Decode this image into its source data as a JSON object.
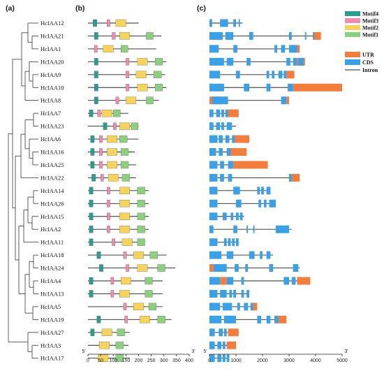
{
  "panels": {
    "a": "(a)",
    "b": "(b)",
    "c": "(c)"
  },
  "colors": {
    "Motif4": "#2a9d8f",
    "Motif3": "#f28bb0",
    "Motif2": "#f5d35c",
    "Motif1": "#8ccf7e",
    "UTR": "#f47c3c",
    "CDS": "#3aa0e8",
    "Intron": "#222222"
  },
  "legend_motifs": [
    "Motif4",
    "Motif3",
    "Motif2",
    "Motif1"
  ],
  "legend_structure": [
    "UTR",
    "CDS",
    "Intron"
  ],
  "axis_b": {
    "start": "5'",
    "end": "3'",
    "ticks": [
      "0",
      "50",
      "100",
      "150",
      "200",
      "250",
      "300",
      "350",
      "400"
    ]
  },
  "axis_c": {
    "start": "5'",
    "end": "3'",
    "ticks": [
      "0",
      "1000",
      "2000",
      "3000",
      "4000",
      "5000"
    ]
  },
  "genes": [
    {
      "name": "HcIAA12",
      "length": 200,
      "motifs": [
        [
          "Motif4",
          20,
          35
        ],
        [
          "Motif3",
          75,
          87
        ],
        [
          "Motif2",
          110,
          150
        ]
      ],
      "gene_len": 1250,
      "utr": [],
      "cds": [
        [
          0,
          100
        ],
        [
          400,
          700
        ],
        [
          900,
          1000
        ],
        [
          1100,
          1150
        ]
      ]
    },
    {
      "name": "HcIAA21",
      "length": 290,
      "motifs": [
        [
          "Motif4",
          25,
          40
        ],
        [
          "Motif3",
          95,
          108
        ],
        [
          "Motif2",
          125,
          165
        ],
        [
          "Motif1",
          230,
          258
        ]
      ],
      "gene_len": 4200,
      "utr": [
        [
          3900,
          4200
        ]
      ],
      "cds": [
        [
          0,
          500
        ],
        [
          600,
          900
        ],
        [
          1500,
          1650
        ],
        [
          3000,
          3100
        ],
        [
          3600,
          3650
        ],
        [
          3900,
          3950
        ]
      ]
    },
    {
      "name": "HcIAA1",
      "length": 270,
      "motifs": [
        [
          "Motif3",
          25,
          37
        ],
        [
          "Motif2",
          60,
          100
        ],
        [
          "Motif1",
          130,
          158
        ]
      ],
      "gene_len": 3400,
      "utr": [
        [
          3100,
          3400
        ]
      ],
      "cds": [
        [
          0,
          350
        ],
        [
          900,
          1050
        ],
        [
          2450,
          2550
        ],
        [
          2700,
          2850
        ],
        [
          3000,
          3300
        ]
      ]
    },
    {
      "name": "HcIAA20",
      "length": 310,
      "motifs": [
        [
          "Motif4",
          25,
          40
        ],
        [
          "Motif3",
          150,
          162
        ],
        [
          "Motif2",
          195,
          235
        ],
        [
          "Motif1",
          265,
          295
        ]
      ],
      "gene_len": 3600,
      "utr": [
        [
          3300,
          3600
        ]
      ],
      "cds": [
        [
          0,
          550
        ],
        [
          650,
          900
        ],
        [
          1400,
          1550
        ],
        [
          2900,
          3050
        ],
        [
          3150,
          3300
        ],
        [
          3350,
          3550
        ]
      ]
    },
    {
      "name": "HcIAA9",
      "length": 305,
      "motifs": [
        [
          "Motif4",
          25,
          40
        ],
        [
          "Motif3",
          150,
          162
        ],
        [
          "Motif2",
          190,
          230
        ],
        [
          "Motif1",
          260,
          290
        ]
      ],
      "gene_len": 3200,
      "utr": [
        [
          2900,
          3200
        ]
      ],
      "cds": [
        [
          0,
          400
        ],
        [
          1000,
          1150
        ],
        [
          2150,
          2250
        ],
        [
          2350,
          2450
        ],
        [
          2600,
          2750
        ],
        [
          2800,
          2900
        ]
      ]
    },
    {
      "name": "HcIAA10",
      "length": 310,
      "motifs": [
        [
          "Motif4",
          25,
          40
        ],
        [
          "Motif3",
          150,
          162
        ],
        [
          "Motif2",
          195,
          235
        ],
        [
          "Motif1",
          265,
          295
        ]
      ],
      "gene_len": 5000,
      "utr": [
        [
          3150,
          5000
        ]
      ],
      "cds": [
        [
          0,
          550
        ],
        [
          1300,
          1500
        ],
        [
          2150,
          2300
        ],
        [
          2950,
          3150
        ]
      ]
    },
    {
      "name": "HcIAA8",
      "length": 280,
      "motifs": [
        [
          "Motif4",
          25,
          40
        ],
        [
          "Motif3",
          110,
          122
        ],
        [
          "Motif2",
          150,
          190
        ],
        [
          "Motif1",
          230,
          258
        ]
      ],
      "gene_len": 3000,
      "utr": [
        [
          0,
          400
        ],
        [
          2900,
          3000
        ]
      ],
      "cds": [
        [
          100,
          700
        ],
        [
          2700,
          2900
        ]
      ]
    },
    {
      "name": "HcIAA7",
      "length": 160,
      "motifs": [
        [
          "Motif4",
          5,
          20
        ],
        [
          "Motif3",
          38,
          50
        ],
        [
          "Motif2",
          55,
          95
        ],
        [
          "Motif1",
          100,
          128
        ]
      ],
      "gene_len": 1100,
      "utr": [
        [
          700,
          1100
        ]
      ],
      "cds": [
        [
          0,
          150
        ],
        [
          250,
          400
        ],
        [
          450,
          550
        ],
        [
          600,
          700
        ]
      ]
    },
    {
      "name": "HcIAA23",
      "length": 200,
      "motifs": [
        [
          "Motif4",
          60,
          75
        ],
        [
          "Motif3",
          100,
          112
        ],
        [
          "Motif2",
          125,
          165
        ],
        [
          "Motif1",
          170,
          198
        ]
      ],
      "gene_len": 1000,
      "utr": [],
      "cds": [
        [
          0,
          150
        ],
        [
          250,
          400
        ],
        [
          450,
          550
        ],
        [
          650,
          850
        ]
      ]
    },
    {
      "name": "HcIAA6",
      "length": 200,
      "motifs": [
        [
          "Motif4",
          10,
          25
        ],
        [
          "Motif3",
          45,
          57
        ],
        [
          "Motif2",
          75,
          115
        ],
        [
          "Motif1",
          125,
          155
        ]
      ],
      "gene_len": 1500,
      "utr": [
        [
          900,
          1500
        ]
      ],
      "cds": [
        [
          0,
          300
        ],
        [
          350,
          500
        ],
        [
          600,
          750
        ],
        [
          850,
          950
        ]
      ]
    },
    {
      "name": "HcIAA16",
      "length": 185,
      "motifs": [
        [
          "Motif4",
          10,
          25
        ],
        [
          "Motif3",
          45,
          57
        ],
        [
          "Motif2",
          75,
          115
        ],
        [
          "Motif1",
          130,
          160
        ]
      ],
      "gene_len": 1400,
      "utr": [
        [
          750,
          1400
        ]
      ],
      "cds": [
        [
          0,
          250
        ],
        [
          350,
          500
        ],
        [
          650,
          800
        ]
      ]
    },
    {
      "name": "HcIAA25",
      "length": 190,
      "motifs": [
        [
          "Motif4",
          10,
          25
        ],
        [
          "Motif3",
          45,
          57
        ],
        [
          "Motif2",
          75,
          115
        ],
        [
          "Motif1",
          130,
          160
        ]
      ],
      "gene_len": 2200,
      "utr": [
        [
          900,
          2200
        ]
      ],
      "cds": [
        [
          0,
          300
        ],
        [
          400,
          550
        ],
        [
          700,
          900
        ]
      ]
    },
    {
      "name": "HcIAA22",
      "length": 190,
      "motifs": [
        [
          "Motif4",
          15,
          30
        ],
        [
          "Motif3",
          50,
          62
        ],
        [
          "Motif2",
          80,
          120
        ],
        [
          "Motif1",
          135,
          165
        ]
      ],
      "gene_len": 3400,
      "utr": [
        [
          3100,
          3400
        ]
      ],
      "cds": [
        [
          0,
          300
        ],
        [
          400,
          550
        ],
        [
          700,
          850
        ],
        [
          3000,
          3100
        ]
      ]
    },
    {
      "name": "HcIAA14",
      "length": 240,
      "motifs": [
        [
          "Motif4",
          5,
          20
        ],
        [
          "Motif3",
          75,
          87
        ],
        [
          "Motif2",
          125,
          165
        ],
        [
          "Motif1",
          195,
          225
        ]
      ],
      "gene_len": 2300,
      "utr": [],
      "cds": [
        [
          0,
          300
        ],
        [
          900,
          1150
        ],
        [
          1800,
          1900
        ],
        [
          1950,
          2050
        ],
        [
          2150,
          2300
        ]
      ]
    },
    {
      "name": "HcIAA26",
      "length": 240,
      "motifs": [
        [
          "Motif4",
          5,
          20
        ],
        [
          "Motif3",
          75,
          87
        ],
        [
          "Motif2",
          125,
          165
        ],
        [
          "Motif1",
          195,
          225
        ]
      ],
      "gene_len": 2500,
      "utr": [],
      "cds": [
        [
          0,
          300
        ],
        [
          1000,
          1200
        ],
        [
          1850,
          1950
        ],
        [
          2050,
          2150
        ],
        [
          2250,
          2500
        ]
      ]
    },
    {
      "name": "HcIAA15",
      "length": 240,
      "motifs": [
        [
          "Motif4",
          5,
          20
        ],
        [
          "Motif3",
          75,
          87
        ],
        [
          "Motif2",
          125,
          165
        ],
        [
          "Motif1",
          195,
          225
        ]
      ],
      "gene_len": 1300,
      "utr": [],
      "cds": [
        [
          0,
          300
        ],
        [
          500,
          650
        ],
        [
          800,
          900
        ],
        [
          1000,
          1100
        ],
        [
          1150,
          1250
        ]
      ]
    },
    {
      "name": "HcIAA2",
      "length": 240,
      "motifs": [
        [
          "Motif4",
          5,
          20
        ],
        [
          "Motif3",
          75,
          87
        ],
        [
          "Motif2",
          125,
          165
        ],
        [
          "Motif1",
          195,
          225
        ]
      ],
      "gene_len": 3100,
      "utr": [],
      "cds": [
        [
          0,
          150
        ],
        [
          900,
          1050
        ],
        [
          1400,
          1450
        ],
        [
          1650,
          1700
        ],
        [
          2500,
          3000
        ]
      ]
    },
    {
      "name": "HcIAA11",
      "length": 225,
      "motifs": [
        [
          "Motif4",
          5,
          20
        ],
        [
          "Motif3",
          95,
          107
        ],
        [
          "Motif2",
          135,
          175
        ],
        [
          "Motif1",
          195,
          225
        ]
      ],
      "gene_len": 1100,
      "utr": [],
      "cds": [
        [
          0,
          300
        ],
        [
          550,
          650
        ],
        [
          700,
          800
        ],
        [
          850,
          950
        ],
        [
          1000,
          1100
        ]
      ]
    },
    {
      "name": "HcIAA18",
      "length": 310,
      "motifs": [
        [
          "Motif4",
          35,
          50
        ],
        [
          "Motif3",
          140,
          152
        ],
        [
          "Motif2",
          180,
          220
        ],
        [
          "Motif1",
          245,
          275
        ]
      ],
      "gene_len": 2400,
      "utr": [],
      "cds": [
        [
          0,
          450
        ],
        [
          650,
          900
        ],
        [
          1500,
          1700
        ],
        [
          1900,
          2000
        ],
        [
          2150,
          2300
        ]
      ]
    },
    {
      "name": "HcIAA24",
      "length": 345,
      "motifs": [
        [
          "Motif4",
          45,
          60
        ],
        [
          "Motif3",
          150,
          162
        ],
        [
          "Motif2",
          195,
          235
        ],
        [
          "Motif1",
          275,
          305
        ]
      ],
      "gene_len": 3400,
      "utr": [
        [
          0,
          150
        ]
      ],
      "cds": [
        [
          150,
          650
        ],
        [
          950,
          1100
        ],
        [
          1350,
          1450
        ],
        [
          2250,
          2400
        ],
        [
          3150,
          3350
        ]
      ]
    },
    {
      "name": "HcIAA4",
      "length": 295,
      "motifs": [
        [
          "Motif4",
          5,
          20
        ],
        [
          "Motif3",
          90,
          102
        ],
        [
          "Motif2",
          130,
          170
        ],
        [
          "Motif1",
          225,
          255
        ]
      ],
      "gene_len": 3800,
      "utr": [
        [
          400,
          650
        ],
        [
          3300,
          3800
        ]
      ],
      "cds": [
        [
          0,
          400
        ],
        [
          650,
          900
        ],
        [
          1200,
          1300
        ],
        [
          2800,
          3000
        ],
        [
          3100,
          3250
        ]
      ]
    },
    {
      "name": "HcIAA13",
      "length": 295,
      "motifs": [
        [
          "Motif4",
          5,
          20
        ],
        [
          "Motif3",
          90,
          102
        ],
        [
          "Motif2",
          125,
          165
        ],
        [
          "Motif1",
          225,
          255
        ]
      ],
      "gene_len": 1500,
      "utr": [],
      "cds": [
        [
          0,
          300
        ],
        [
          400,
          650
        ],
        [
          750,
          850
        ],
        [
          900,
          1000
        ],
        [
          1200,
          1300
        ],
        [
          1400,
          1500
        ]
      ]
    },
    {
      "name": "HcIAA5",
      "length": 295,
      "motifs": [
        [
          "Motif3",
          140,
          152
        ],
        [
          "Motif2",
          180,
          220
        ],
        [
          "Motif1",
          240,
          270
        ]
      ],
      "gene_len": 1800,
      "utr": [
        [
          1650,
          1800
        ]
      ],
      "cds": [
        [
          0,
          400
        ],
        [
          500,
          850
        ],
        [
          1050,
          1150
        ],
        [
          1300,
          1450
        ],
        [
          1550,
          1650
        ]
      ]
    },
    {
      "name": "HcIAA19",
      "length": 330,
      "motifs": [
        [
          "Motif4",
          35,
          50
        ],
        [
          "Motif3",
          145,
          157
        ],
        [
          "Motif2",
          205,
          245
        ],
        [
          "Motif1",
          275,
          305
        ]
      ],
      "gene_len": 2900,
      "utr": [
        [
          2600,
          2900
        ]
      ],
      "cds": [
        [
          0,
          450
        ],
        [
          550,
          1000
        ],
        [
          1800,
          1950
        ],
        [
          2150,
          2300
        ],
        [
          2450,
          2600
        ]
      ]
    },
    {
      "name": "HcIAA27",
      "length": 165,
      "motifs": [
        [
          "Motif4",
          10,
          25
        ],
        [
          "Motif2",
          55,
          95
        ],
        [
          "Motif1",
          115,
          145
        ]
      ],
      "gene_len": 1100,
      "utr": [
        [
          700,
          1100
        ]
      ],
      "cds": [
        [
          0,
          200
        ],
        [
          350,
          500
        ],
        [
          550,
          650
        ]
      ]
    },
    {
      "name": "HcIAA3",
      "length": 160,
      "motifs": [
        [
          "Motif2",
          45,
          85
        ],
        [
          "Motif1",
          110,
          140
        ]
      ],
      "gene_len": 1000,
      "utr": [
        [
          650,
          1000
        ]
      ],
      "cds": [
        [
          0,
          200
        ],
        [
          300,
          450
        ],
        [
          500,
          600
        ]
      ]
    },
    {
      "name": "HcIAA17",
      "length": 165,
      "motifs": [
        [
          "Motif2",
          40,
          80
        ],
        [
          "Motif1",
          110,
          140
        ]
      ],
      "gene_len": 750,
      "utr": [],
      "cds": [
        [
          0,
          200
        ],
        [
          300,
          450
        ],
        [
          500,
          600
        ],
        [
          650,
          750
        ]
      ]
    }
  ]
}
